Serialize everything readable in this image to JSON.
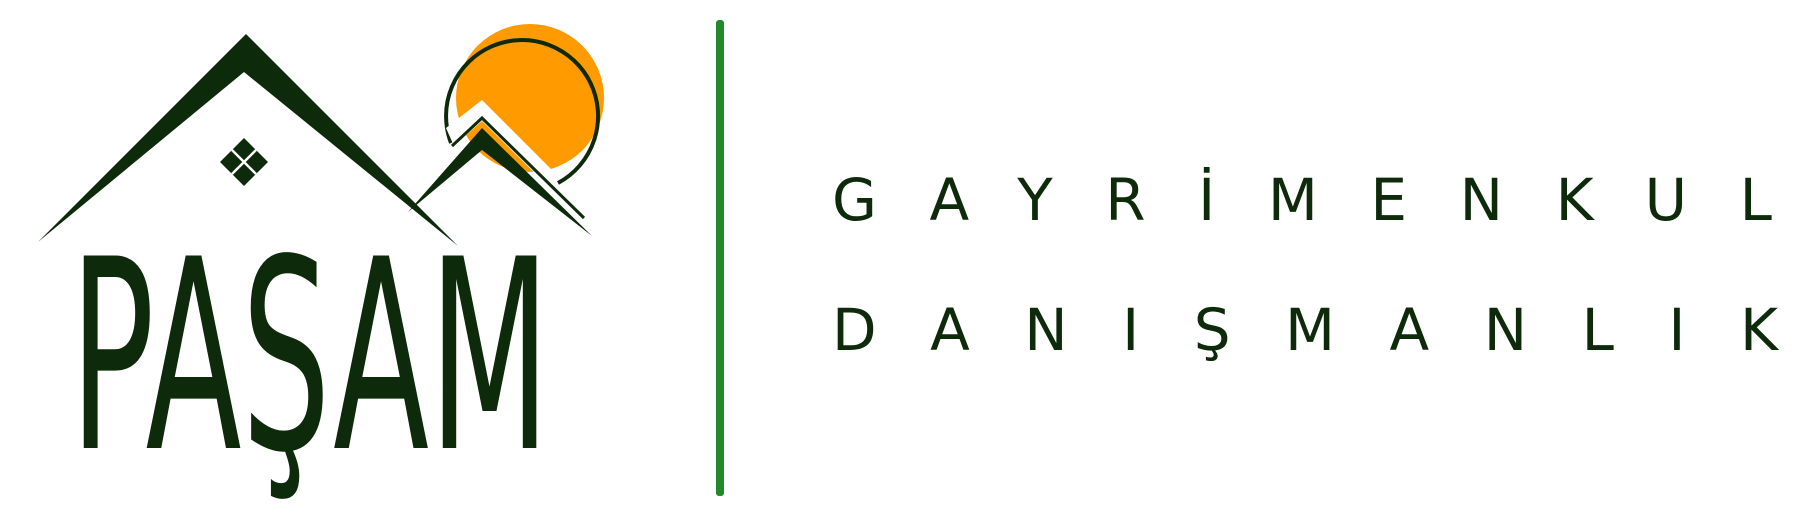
{
  "logo": {
    "brand_name": "PAŞAM",
    "tagline_line1": "GAYRİMENKUL",
    "tagline_line2": "DANIŞMANLIK",
    "icons": [
      "house-roof-icon",
      "mountain-icon",
      "sun-icon",
      "window-icon"
    ]
  },
  "colors": {
    "dark_green": "#0d2a0a",
    "sun_orange": "#ff9a00",
    "divider_green": "#1f8a2a",
    "background": "#ffffff"
  }
}
